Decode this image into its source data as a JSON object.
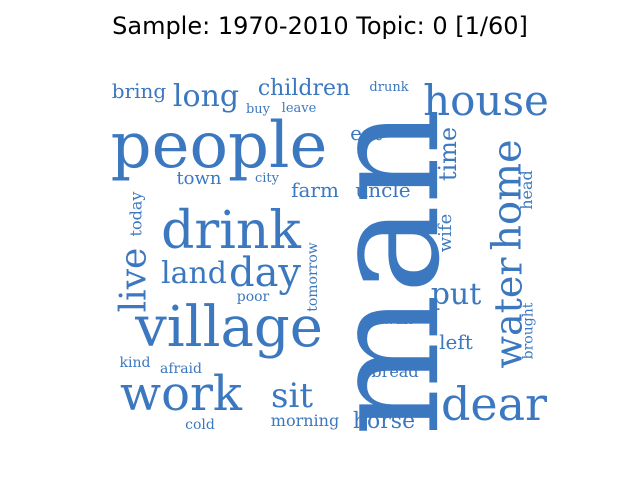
{
  "title": "Sample: 1970-2010 Topic: 0 [1/60]",
  "colors": {
    "word": "#3c78c0",
    "title": "#000000",
    "background": "#ffffff"
  },
  "words": [
    {
      "text": "man",
      "weight": 100,
      "orientation": "vertical"
    },
    {
      "text": "people",
      "weight": 60,
      "orientation": "horizontal"
    },
    {
      "text": "village",
      "weight": 50,
      "orientation": "horizontal"
    },
    {
      "text": "drink",
      "weight": 48,
      "orientation": "horizontal"
    },
    {
      "text": "house",
      "weight": 40,
      "orientation": "horizontal"
    },
    {
      "text": "dear",
      "weight": 40,
      "orientation": "horizontal"
    },
    {
      "text": "work",
      "weight": 40,
      "orientation": "horizontal"
    },
    {
      "text": "home",
      "weight": 38,
      "orientation": "vertical"
    },
    {
      "text": "water",
      "weight": 36,
      "orientation": "vertical"
    },
    {
      "text": "day",
      "weight": 36,
      "orientation": "horizontal"
    },
    {
      "text": "live",
      "weight": 33,
      "orientation": "vertical"
    },
    {
      "text": "land",
      "weight": 28,
      "orientation": "horizontal"
    },
    {
      "text": "long",
      "weight": 28,
      "orientation": "horizontal"
    },
    {
      "text": "put",
      "weight": 27,
      "orientation": "horizontal"
    },
    {
      "text": "sit",
      "weight": 27,
      "orientation": "horizontal"
    },
    {
      "text": "time",
      "weight": 23,
      "orientation": "vertical"
    },
    {
      "text": "horse",
      "weight": 21,
      "orientation": "horizontal"
    },
    {
      "text": "children",
      "weight": 20,
      "orientation": "horizontal"
    },
    {
      "text": "bring",
      "weight": 19,
      "orientation": "horizontal"
    },
    {
      "text": "uncle",
      "weight": 19,
      "orientation": "horizontal"
    },
    {
      "text": "left",
      "weight": 19,
      "orientation": "horizontal"
    },
    {
      "text": "farm",
      "weight": 18,
      "orientation": "horizontal"
    },
    {
      "text": "town",
      "weight": 18,
      "orientation": "horizontal"
    },
    {
      "text": "eat",
      "weight": 18,
      "orientation": "horizontal"
    },
    {
      "text": "wife",
      "weight": 18,
      "orientation": "vertical"
    },
    {
      "text": "today",
      "weight": 16,
      "orientation": "vertical"
    },
    {
      "text": "head",
      "weight": 16,
      "orientation": "vertical"
    },
    {
      "text": "morning",
      "weight": 16,
      "orientation": "horizontal"
    },
    {
      "text": "bread",
      "weight": 15,
      "orientation": "horizontal"
    },
    {
      "text": "afraid",
      "weight": 14,
      "orientation": "horizontal"
    },
    {
      "text": "kind",
      "weight": 14,
      "orientation": "horizontal"
    },
    {
      "text": "cold",
      "weight": 14,
      "orientation": "horizontal"
    },
    {
      "text": "wait",
      "weight": 14,
      "orientation": "horizontal"
    },
    {
      "text": "brought",
      "weight": 14,
      "orientation": "vertical"
    },
    {
      "text": "poor",
      "weight": 14,
      "orientation": "horizontal"
    },
    {
      "text": "tomorrow",
      "weight": 14,
      "orientation": "vertical"
    },
    {
      "text": "buy",
      "weight": 13,
      "orientation": "horizontal"
    },
    {
      "text": "leave",
      "weight": 13,
      "orientation": "horizontal"
    },
    {
      "text": "city",
      "weight": 13,
      "orientation": "horizontal"
    },
    {
      "text": "drunk",
      "weight": 13,
      "orientation": "horizontal"
    }
  ]
}
